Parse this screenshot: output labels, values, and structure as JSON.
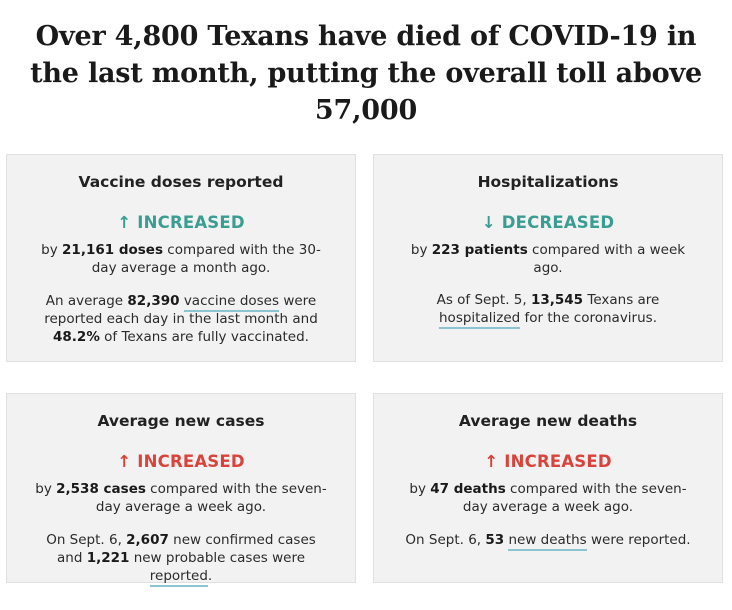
{
  "headline": "Over 4,800 Texans have died of COVID-19 in the last month, putting the overall toll above 57,000",
  "cards": [
    {
      "title": "Vaccine doses reported",
      "status_arrow": "↑",
      "status": "INCREASED",
      "status_color": "#3a9d92",
      "detail": {
        "pre": "by ",
        "bold": "21,161 doses",
        "post": " compared with the 30-day average a month ago."
      },
      "note": {
        "t1": "An average ",
        "b1": "82,390",
        "t2": " ",
        "link": "vaccine doses",
        "t3": " were reported each day in the last month and ",
        "b2": "48.2%",
        "t4": " of Texans are fully vaccinated."
      }
    },
    {
      "title": "Hospitalizations",
      "status_arrow": "↓",
      "status": "DECREASED",
      "status_color": "#3a9d92",
      "detail": {
        "pre": "by ",
        "bold": "223 patients",
        "post": " compared with a week ago."
      },
      "note": {
        "t1": "As of Sept. 5, ",
        "b1": "13,545",
        "t2": " Texans are ",
        "link": "hospitalized",
        "t3": " for the coronavirus."
      }
    },
    {
      "title": "Average new cases",
      "status_arrow": "↑",
      "status": "INCREASED",
      "status_color": "#d8443c",
      "detail": {
        "pre": "by ",
        "bold": "2,538 cases",
        "post": " compared with the seven-day average a week ago."
      },
      "note": {
        "t1": "On Sept. 6, ",
        "b1": "2,607",
        "t2": " new confirmed cases and ",
        "b2": "1,221",
        "t3": " new probable cases were ",
        "link": "reported",
        "t4": "."
      }
    },
    {
      "title": "Average new deaths",
      "status_arrow": "↑",
      "status": "INCREASED",
      "status_color": "#d8443c",
      "detail": {
        "pre": "by ",
        "bold": "47 deaths",
        "post": " compared with the seven-day average a week ago."
      },
      "note": {
        "t1": "On Sept. 6, ",
        "b1": "53",
        "t2": " ",
        "link": "new deaths",
        "t3": " were reported."
      }
    }
  ]
}
